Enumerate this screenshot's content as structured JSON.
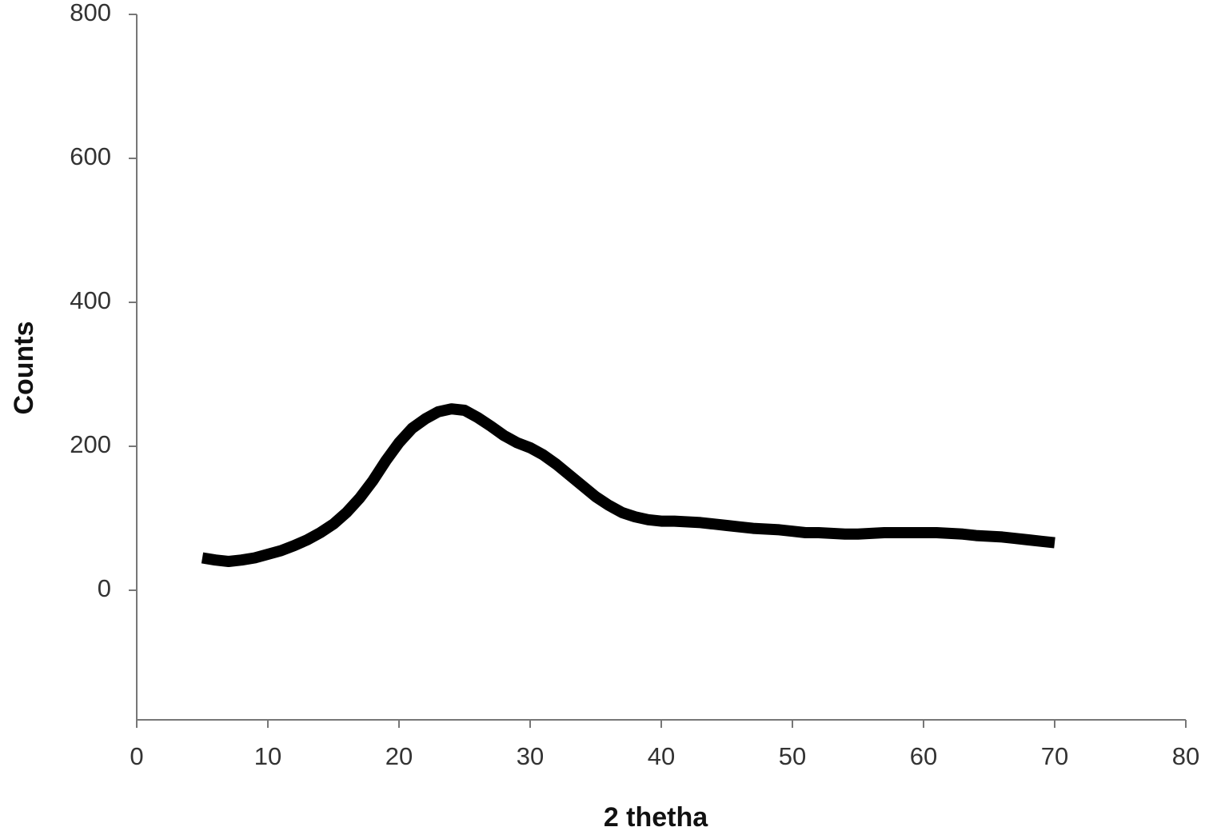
{
  "chart_data": {
    "type": "line",
    "x_label": "2 thetha",
    "y_label": "Counts",
    "x": [
      5,
      6,
      7,
      8,
      9,
      10,
      11,
      12,
      13,
      14,
      15,
      16,
      17,
      18,
      19,
      20,
      21,
      22,
      23,
      24,
      25,
      26,
      27,
      28,
      29,
      30,
      31,
      32,
      33,
      34,
      35,
      36,
      37,
      38,
      39,
      40,
      41,
      42,
      43,
      44,
      45,
      46,
      47,
      48,
      49,
      50,
      51,
      52,
      53,
      54,
      55,
      56,
      57,
      58,
      59,
      60,
      61,
      62,
      63,
      64,
      65,
      66,
      67,
      68,
      69,
      70
    ],
    "values": [
      45,
      42,
      40,
      42,
      45,
      50,
      55,
      62,
      70,
      80,
      92,
      108,
      128,
      152,
      180,
      205,
      225,
      238,
      248,
      252,
      250,
      240,
      228,
      215,
      205,
      198,
      188,
      175,
      160,
      145,
      130,
      118,
      108,
      102,
      98,
      96,
      96,
      95,
      94,
      92,
      90,
      88,
      86,
      85,
      84,
      82,
      80,
      80,
      79,
      78,
      78,
      79,
      80,
      80,
      80,
      80,
      80,
      79,
      78,
      76,
      75,
      74,
      72,
      70,
      68,
      66
    ],
    "color": "#000000",
    "xlim": [
      0,
      80
    ],
    "xticks": [
      0,
      10,
      20,
      30,
      40,
      50,
      60,
      70,
      80
    ],
    "ylim": [
      -180,
      800
    ],
    "yticks": [
      0,
      200,
      400,
      600,
      800
    ],
    "grid": false
  }
}
